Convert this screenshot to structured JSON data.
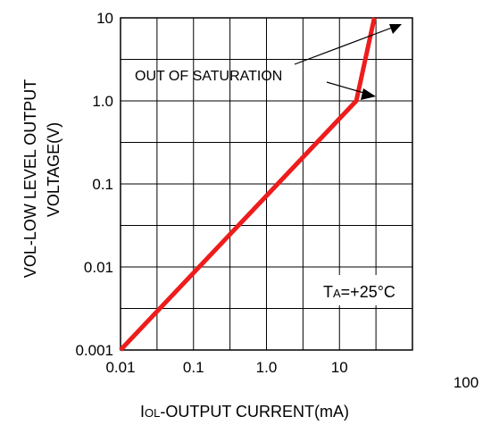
{
  "chart_data": {
    "type": "line",
    "x_scale": "log",
    "y_scale": "log",
    "xlim": [
      0.01,
      100
    ],
    "ylim": [
      0.001,
      10
    ],
    "grid": true,
    "x_tick_labels": [
      "0.01",
      "0.1",
      "1.0",
      "10",
      "100"
    ],
    "y_tick_labels": [
      "10",
      "1.0",
      "0.1",
      "0.01",
      "0.001"
    ],
    "xlabel_parts": {
      "main1": "I",
      "sub": "OL",
      "main2": "-OUTPUT CURRENT(mA)"
    },
    "ylabel_lines": [
      "VOL-LOW LEVEL OUTPUT",
      "VOLTAGE(V)"
    ],
    "series": [
      {
        "color": "#ee1c1c",
        "points": [
          {
            "x": 0.01,
            "y": 0.001
          },
          {
            "x": 17,
            "y": 1.0
          },
          {
            "x": 30,
            "y": 10
          }
        ]
      }
    ],
    "annotations": {
      "saturation_text": "OUT OF SATURATION",
      "temperature": {
        "main": "T",
        "sub": "A",
        "rest": "=+25",
        "unit": "°C"
      }
    }
  }
}
